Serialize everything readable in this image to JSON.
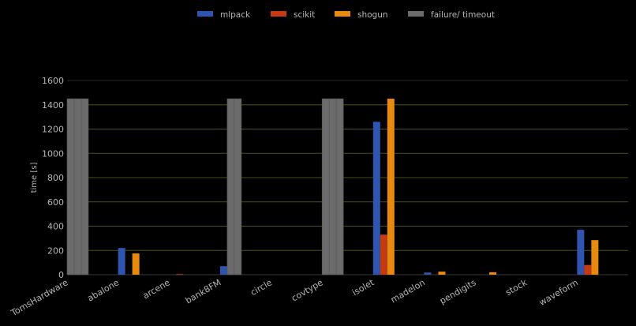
{
  "chart_data": {
    "type": "bar",
    "xlabel": "",
    "ylabel": "time [s]",
    "ylim": [
      0,
      1600
    ],
    "yticks": [
      0,
      200,
      400,
      600,
      800,
      1000,
      1200,
      1400,
      1600
    ],
    "grid": true,
    "legend_position": "top",
    "failure_value": 1450,
    "categories": [
      "TomsHardware",
      "abalone",
      "arcene",
      "bank8FM",
      "circle",
      "covtype",
      "isolet",
      "madelon",
      "pendigits",
      "stock",
      "waveform"
    ],
    "series": [
      {
        "name": "mlpack",
        "color": "#2f55b0",
        "values": [
          1450,
          220,
          0,
          70,
          0,
          1450,
          1260,
          18,
          0,
          0,
          370
        ]
      },
      {
        "name": "scikit",
        "color": "#c43a12",
        "values": [
          1450,
          0,
          5,
          1450,
          0,
          1450,
          330,
          0,
          0,
          0,
          80
        ]
      },
      {
        "name": "shogun",
        "color": "#e98a10",
        "values": [
          1450,
          175,
          0,
          1450,
          0,
          1450,
          1450,
          25,
          20,
          0,
          285
        ]
      }
    ],
    "failures": [
      [
        true,
        false,
        false,
        false,
        false,
        true,
        false,
        false,
        false,
        false,
        false
      ],
      [
        true,
        false,
        false,
        true,
        false,
        true,
        false,
        false,
        false,
        false,
        false
      ],
      [
        true,
        false,
        false,
        true,
        false,
        true,
        false,
        false,
        false,
        false,
        false
      ]
    ],
    "failure_legend": {
      "name": "failure/ timeout",
      "color": "#6b6b6b"
    }
  }
}
